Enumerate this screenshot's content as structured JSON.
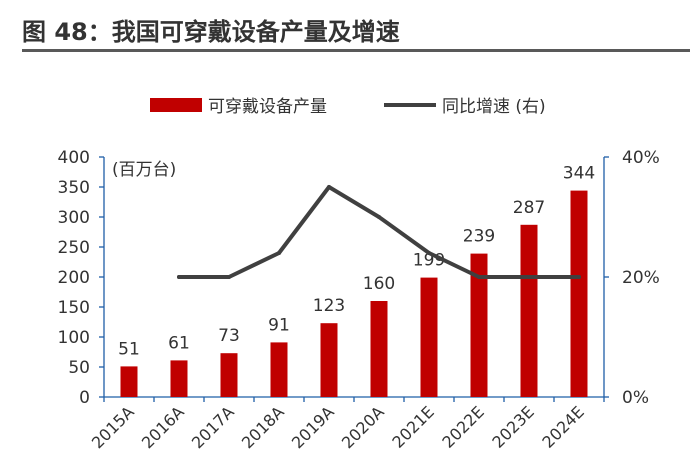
{
  "header": {
    "title": "图 48：我国可穿戴设备产量及增速"
  },
  "colors": {
    "bar": "#c00000",
    "line": "#404040",
    "axis": "#1f5fa8",
    "title_rule": "#595959"
  },
  "chart_data": {
    "type": "bar",
    "title": "",
    "unit_label": "(百万台)",
    "categories": [
      "2015A",
      "2016A",
      "2017A",
      "2018A",
      "2019A",
      "2020A",
      "2021E",
      "2022E",
      "2023E",
      "2024E"
    ],
    "series": [
      {
        "name": "可穿戴设备产量",
        "kind": "bar",
        "axis": "left",
        "values": [
          51,
          61,
          73,
          91,
          123,
          160,
          199,
          239,
          287,
          344
        ],
        "data_labels": [
          "51",
          "61",
          "73",
          "91",
          "123",
          "160",
          "199",
          "239",
          "287",
          "344"
        ]
      },
      {
        "name": "同比增速 (右)",
        "kind": "line",
        "axis": "right",
        "values": [
          null,
          0.2,
          0.2,
          0.24,
          0.35,
          0.3,
          0.24,
          0.2,
          0.2,
          0.2
        ]
      }
    ],
    "y_left": {
      "min": 0,
      "max": 400,
      "ticks": [
        0,
        50,
        100,
        150,
        200,
        250,
        300,
        350,
        400
      ]
    },
    "y_right": {
      "min": 0,
      "max": 0.4,
      "ticks": [
        0,
        0.2,
        0.4
      ],
      "tick_labels": [
        "0%",
        "20%",
        "40%"
      ]
    },
    "legend": {
      "placement": "top"
    },
    "grid": false
  }
}
